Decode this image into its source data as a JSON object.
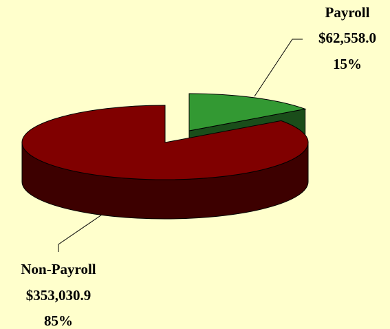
{
  "chart_data": {
    "type": "pie",
    "categories": [
      "Payroll",
      "Non-Payroll"
    ],
    "values": [
      62558.0,
      353030.9
    ],
    "value_labels": [
      "$62,558.0",
      "$353,030.9"
    ],
    "percent_labels": [
      "15%",
      "85%"
    ],
    "colors": [
      "#339933",
      "#800000"
    ],
    "side_colors": [
      "#1a4d1a",
      "#3d0000"
    ],
    "exploded": [
      "Payroll"
    ]
  }
}
